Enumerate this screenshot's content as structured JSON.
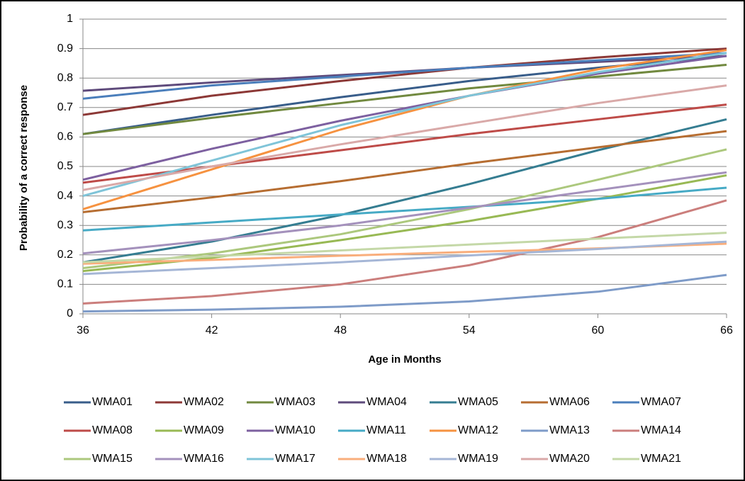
{
  "chart_data": {
    "type": "line",
    "x_label": "Age in Months",
    "y_label": "Probability of a correct response",
    "x": [
      36,
      42,
      48,
      54,
      60,
      66
    ],
    "xlim": [
      36,
      66
    ],
    "xticks": [
      36,
      42,
      48,
      54,
      60,
      66
    ],
    "ylim": [
      0,
      1
    ],
    "yticks": [
      0,
      0.1,
      0.2,
      0.3,
      0.4,
      0.5,
      0.6,
      0.7,
      0.8,
      0.9,
      1
    ],
    "grid": true,
    "legend": "bottom",
    "series": [
      {
        "name": "WMA01",
        "color": "#385D8A",
        "values": [
          0.61,
          0.675,
          0.735,
          0.79,
          0.835,
          0.875
        ]
      },
      {
        "name": "WMA02",
        "color": "#8C3836",
        "values": [
          0.675,
          0.74,
          0.79,
          0.835,
          0.87,
          0.9
        ]
      },
      {
        "name": "WMA03",
        "color": "#71893F",
        "values": [
          0.61,
          0.665,
          0.715,
          0.765,
          0.805,
          0.845
        ]
      },
      {
        "name": "WMA04",
        "color": "#5E4A7B",
        "values": [
          0.757,
          0.785,
          0.81,
          0.835,
          0.855,
          0.875
        ]
      },
      {
        "name": "WMA05",
        "color": "#357D91",
        "values": [
          0.175,
          0.245,
          0.335,
          0.44,
          0.555,
          0.66
        ]
      },
      {
        "name": "WMA06",
        "color": "#B66D31",
        "values": [
          0.345,
          0.395,
          0.45,
          0.51,
          0.565,
          0.62
        ]
      },
      {
        "name": "WMA07",
        "color": "#4A7EBB",
        "values": [
          0.73,
          0.775,
          0.805,
          0.835,
          0.86,
          0.885
        ]
      },
      {
        "name": "WMA08",
        "color": "#BE4B48",
        "values": [
          0.445,
          0.5,
          0.555,
          0.61,
          0.66,
          0.71
        ]
      },
      {
        "name": "WMA09",
        "color": "#98B954",
        "values": [
          0.145,
          0.19,
          0.25,
          0.315,
          0.39,
          0.47
        ]
      },
      {
        "name": "WMA10",
        "color": "#7D60A0",
        "values": [
          0.455,
          0.56,
          0.655,
          0.74,
          0.815,
          0.875
        ]
      },
      {
        "name": "WMA11",
        "color": "#46AAC5",
        "values": [
          0.283,
          0.31,
          0.337,
          0.363,
          0.39,
          0.428
        ]
      },
      {
        "name": "WMA12",
        "color": "#F69240",
        "values": [
          0.355,
          0.49,
          0.625,
          0.74,
          0.83,
          0.895
        ]
      },
      {
        "name": "WMA13",
        "color": "#7E9BC8",
        "values": [
          0.008,
          0.014,
          0.024,
          0.042,
          0.075,
          0.132
        ]
      },
      {
        "name": "WMA14",
        "color": "#CB7E7C",
        "values": [
          0.035,
          0.06,
          0.1,
          0.165,
          0.26,
          0.385
        ]
      },
      {
        "name": "WMA15",
        "color": "#ACC87D",
        "values": [
          0.155,
          0.205,
          0.27,
          0.355,
          0.455,
          0.558
        ]
      },
      {
        "name": "WMA16",
        "color": "#A491BC",
        "values": [
          0.205,
          0.25,
          0.3,
          0.36,
          0.42,
          0.48
        ]
      },
      {
        "name": "WMA17",
        "color": "#7FC4D8",
        "values": [
          0.4,
          0.52,
          0.64,
          0.74,
          0.82,
          0.885
        ]
      },
      {
        "name": "WMA18",
        "color": "#F9AE7C",
        "values": [
          0.17,
          0.183,
          0.197,
          0.21,
          0.222,
          0.238
        ]
      },
      {
        "name": "WMA19",
        "color": "#A5B6D6",
        "values": [
          0.135,
          0.155,
          0.175,
          0.198,
          0.22,
          0.245
        ]
      },
      {
        "name": "WMA20",
        "color": "#D9A9A8",
        "values": [
          0.42,
          0.5,
          0.575,
          0.645,
          0.715,
          0.775
        ]
      },
      {
        "name": "WMA21",
        "color": "#C4D8A7",
        "values": [
          0.175,
          0.195,
          0.215,
          0.235,
          0.255,
          0.275
        ]
      }
    ]
  }
}
